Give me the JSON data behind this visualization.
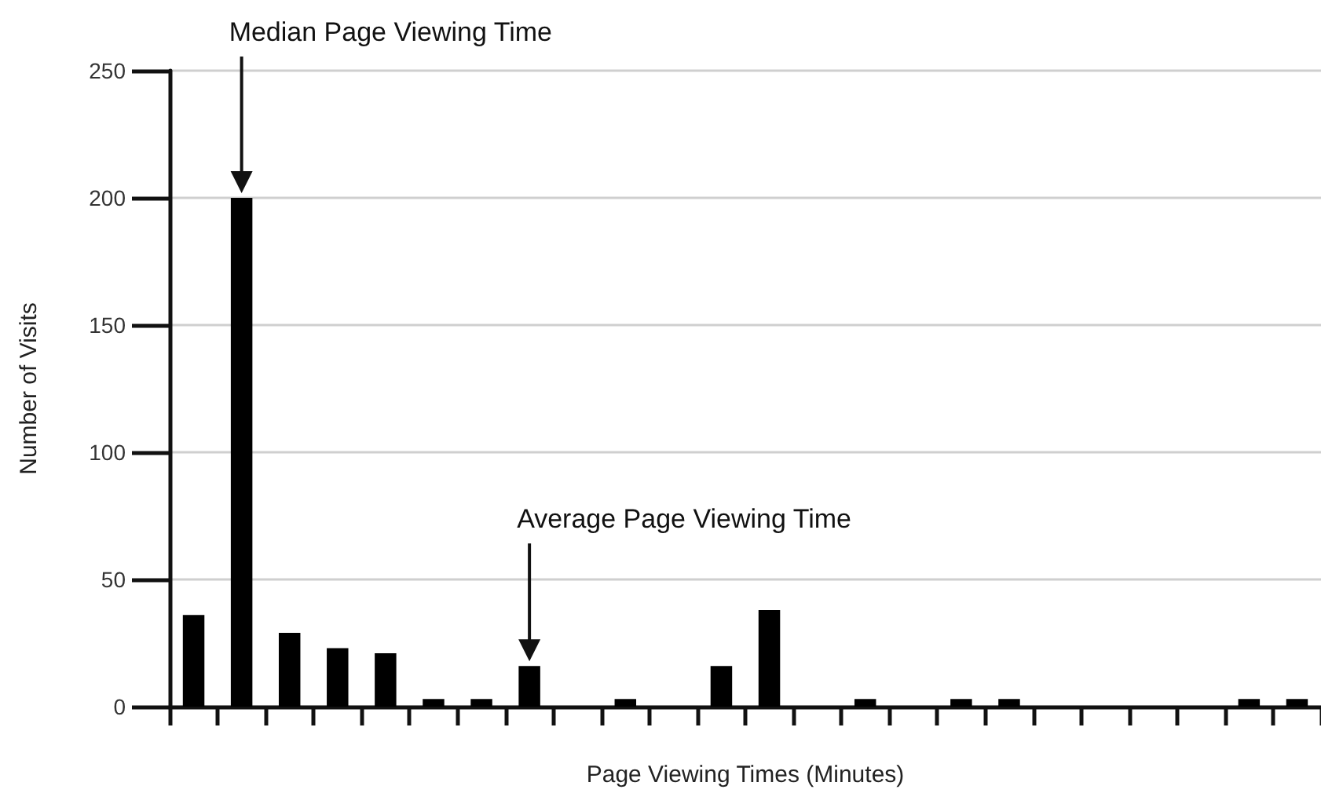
{
  "chart_data": {
    "type": "bar",
    "xlabel": "Page Viewing Times (Minutes)",
    "ylabel": "Number of Visits",
    "categories": [
      null,
      null,
      null,
      null,
      null,
      null,
      null,
      null,
      null,
      null,
      null,
      null,
      null,
      null,
      null,
      null,
      null,
      null,
      null,
      null,
      null,
      null,
      null,
      null
    ],
    "values": [
      36,
      200,
      29,
      23,
      21,
      3,
      3,
      16,
      0,
      3,
      0,
      16,
      38,
      0,
      3,
      0,
      3,
      3,
      0,
      0,
      0,
      0,
      3,
      3
    ],
    "color": "#000000",
    "ylim": [
      0,
      250
    ],
    "yticks": [
      0,
      50,
      100,
      150,
      200,
      250
    ],
    "grid": "y",
    "tick_labels": "y",
    "annotations": [
      "Median Page Viewing Time",
      "Average Page Viewing Time"
    ]
  }
}
